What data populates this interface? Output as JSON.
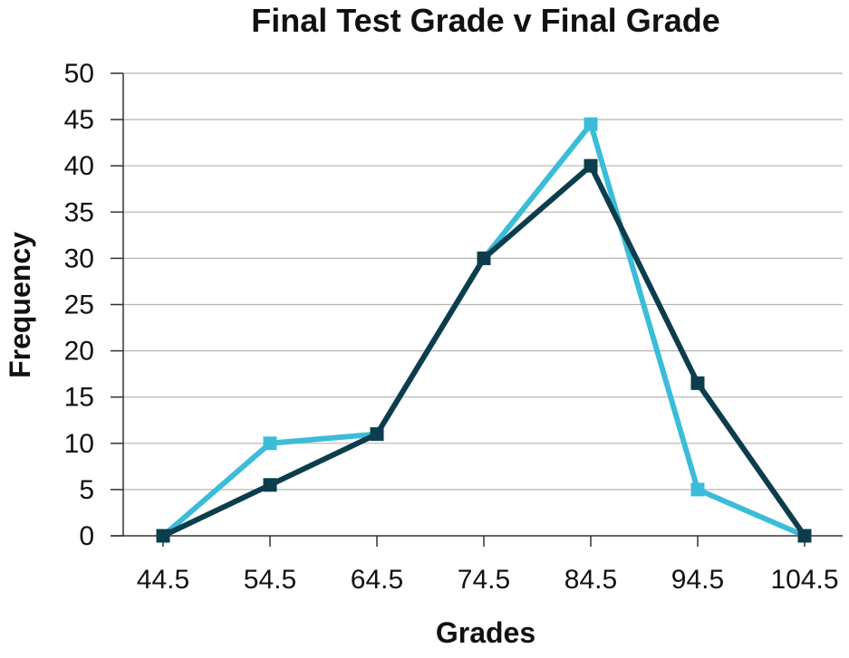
{
  "chart_data": {
    "type": "line",
    "title": "Final Test Grade v Final Grade",
    "xlabel": "Grades",
    "ylabel": "Frequency",
    "x": [
      "44.5",
      "54.5",
      "64.5",
      "74.5",
      "84.5",
      "94.5",
      "104.5"
    ],
    "ylim": [
      0,
      50
    ],
    "yticks": [
      "0",
      "5",
      "10",
      "15",
      "20",
      "25",
      "30",
      "35",
      "40",
      "45",
      "50"
    ],
    "grid": "horizontal",
    "series": [
      {
        "color": "#3bbcd9",
        "marker": "square",
        "values": [
          0,
          10,
          11,
          30,
          44.5,
          5,
          0
        ]
      },
      {
        "color": "#0c3d4d",
        "marker": "square",
        "values": [
          0,
          5.5,
          11,
          30,
          40,
          16.5,
          0
        ]
      }
    ]
  }
}
